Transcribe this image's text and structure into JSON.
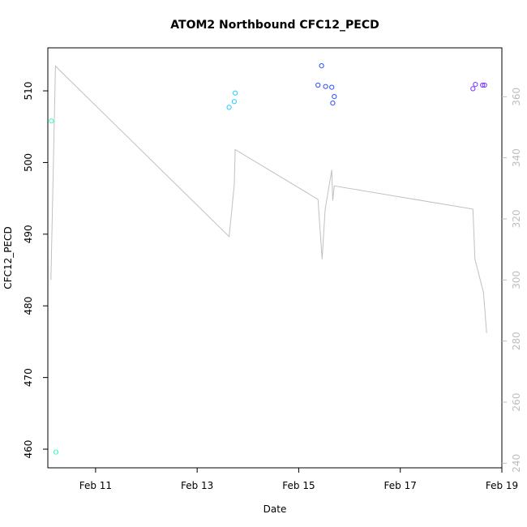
{
  "chart_data": {
    "type": "scatter",
    "title": "ATOM2 Northbound CFC12_PECD",
    "xlabel": "Date",
    "ylabel": "CFC12_PECD",
    "x_ticks": [
      {
        "day": 11,
        "label": "Feb 11"
      },
      {
        "day": 13,
        "label": "Feb 13"
      },
      {
        "day": 15,
        "label": "Feb 15"
      },
      {
        "day": 17,
        "label": "Feb 17"
      },
      {
        "day": 19,
        "label": "Feb 19"
      }
    ],
    "xlim": [
      10.06,
      19.0
    ],
    "ylim": [
      457.4,
      516.0
    ],
    "y_ticks": [
      460,
      470,
      480,
      490,
      500,
      510
    ],
    "y2lim": [
      238.5,
      376.0
    ],
    "y2_ticks": [
      240,
      260,
      280,
      300,
      320,
      340,
      360
    ],
    "box": true,
    "grid": false,
    "series": [
      {
        "color": "#33ffc4",
        "points": [
          [
            10.13,
            505.8
          ],
          [
            10.22,
            459.6
          ]
        ]
      },
      {
        "color": "#1fcfff",
        "points": [
          [
            13.63,
            507.7
          ],
          [
            13.73,
            508.5
          ],
          [
            13.75,
            509.7
          ]
        ]
      },
      {
        "color": "#2b4dff",
        "points": [
          [
            15.38,
            510.8
          ],
          [
            15.45,
            513.5
          ],
          [
            15.53,
            510.6
          ],
          [
            15.65,
            510.5
          ],
          [
            15.67,
            508.3
          ],
          [
            15.7,
            509.2
          ]
        ]
      },
      {
        "color": "#7a33ff",
        "points": [
          [
            18.43,
            510.3
          ],
          [
            18.48,
            510.9
          ],
          [
            18.62,
            510.8
          ],
          [
            18.66,
            510.8
          ]
        ]
      }
    ],
    "secondary_line": {
      "axis": "right",
      "color": "#c0c0c0",
      "points": [
        [
          10.12,
          300.0
        ],
        [
          10.21,
          370.0
        ],
        [
          13.63,
          314.2
        ],
        [
          13.73,
          331.0
        ],
        [
          13.75,
          342.7
        ],
        [
          15.38,
          326.4
        ],
        [
          15.46,
          306.8
        ],
        [
          15.52,
          323.0
        ],
        [
          15.65,
          336.0
        ],
        [
          15.67,
          326.0
        ],
        [
          15.7,
          330.8
        ],
        [
          18.43,
          323.2
        ],
        [
          18.47,
          306.8
        ],
        [
          18.64,
          295.8
        ],
        [
          18.7,
          282.6
        ]
      ]
    }
  }
}
